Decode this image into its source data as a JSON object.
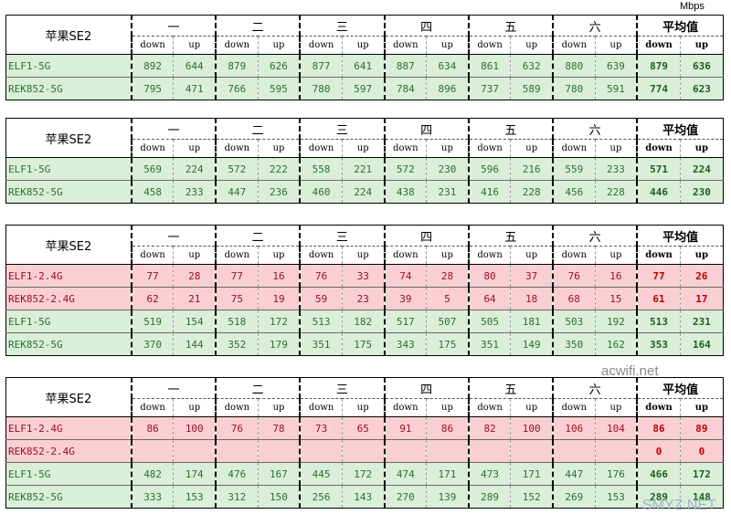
{
  "unit": "Mbps",
  "title": "苹果SE2",
  "groups": [
    "一",
    "二",
    "三",
    "四",
    "五",
    "六"
  ],
  "avg_label": "平均值",
  "sub_down": "down",
  "sub_up": "up",
  "tables": [
    {
      "rows": [
        {
          "label": "ELF1-5G",
          "style": "green",
          "values": [
            "892",
            "644",
            "879",
            "626",
            "877",
            "641",
            "887",
            "634",
            "861",
            "632",
            "880",
            "639"
          ],
          "avg": [
            "879",
            "636"
          ]
        },
        {
          "label": "REK852-5G",
          "style": "green",
          "values": [
            "795",
            "471",
            "766",
            "595",
            "780",
            "597",
            "784",
            "896",
            "737",
            "589",
            "780",
            "591"
          ],
          "avg": [
            "774",
            "623"
          ]
        }
      ]
    },
    {
      "rows": [
        {
          "label": "ELF1-5G",
          "style": "green",
          "values": [
            "569",
            "224",
            "572",
            "222",
            "558",
            "221",
            "572",
            "230",
            "596",
            "216",
            "559",
            "233"
          ],
          "avg": [
            "571",
            "224"
          ]
        },
        {
          "label": "REK852-5G",
          "style": "green",
          "values": [
            "458",
            "233",
            "447",
            "236",
            "460",
            "224",
            "438",
            "231",
            "416",
            "228",
            "456",
            "228"
          ],
          "avg": [
            "446",
            "230"
          ]
        }
      ]
    },
    {
      "rows": [
        {
          "label": "ELF1-2.4G",
          "style": "red",
          "values": [
            "77",
            "28",
            "77",
            "16",
            "76",
            "33",
            "74",
            "28",
            "80",
            "37",
            "76",
            "16"
          ],
          "avg": [
            "77",
            "26"
          ]
        },
        {
          "label": "REK852-2.4G",
          "style": "red",
          "values": [
            "62",
            "21",
            "75",
            "19",
            "59",
            "23",
            "39",
            "5",
            "64",
            "18",
            "68",
            "15"
          ],
          "avg": [
            "61",
            "17"
          ]
        },
        {
          "label": "ELF1-5G",
          "style": "green",
          "values": [
            "519",
            "154",
            "518",
            "172",
            "513",
            "182",
            "517",
            "507",
            "505",
            "181",
            "503",
            "192"
          ],
          "avg": [
            "513",
            "231"
          ]
        },
        {
          "label": "REK852-5G",
          "style": "green",
          "values": [
            "370",
            "144",
            "352",
            "179",
            "351",
            "175",
            "343",
            "175",
            "351",
            "149",
            "350",
            "162"
          ],
          "avg": [
            "353",
            "164"
          ]
        }
      ]
    },
    {
      "rows": [
        {
          "label": "ELF1-2.4G",
          "style": "red",
          "values": [
            "86",
            "100",
            "76",
            "78",
            "73",
            "65",
            "91",
            "86",
            "82",
            "100",
            "106",
            "104"
          ],
          "avg": [
            "86",
            "89"
          ]
        },
        {
          "label": "REK852-2.4G",
          "style": "red",
          "values": [
            "",
            "",
            "",
            "",
            "",
            "",
            "",
            "",
            "",
            "",
            "",
            ""
          ],
          "avg": [
            "0",
            "0"
          ]
        },
        {
          "label": "ELF1-5G",
          "style": "green",
          "values": [
            "482",
            "174",
            "476",
            "167",
            "445",
            "172",
            "474",
            "171",
            "473",
            "171",
            "447",
            "176"
          ],
          "avg": [
            "466",
            "172"
          ]
        },
        {
          "label": "REK852-5G",
          "style": "green",
          "values": [
            "333",
            "153",
            "312",
            "150",
            "256",
            "143",
            "270",
            "139",
            "289",
            "152",
            "269",
            "153"
          ],
          "avg": [
            "289",
            "148"
          ]
        }
      ]
    }
  ],
  "watermarks": [
    "acwifi.net",
    "SMYZ.NET"
  ]
}
